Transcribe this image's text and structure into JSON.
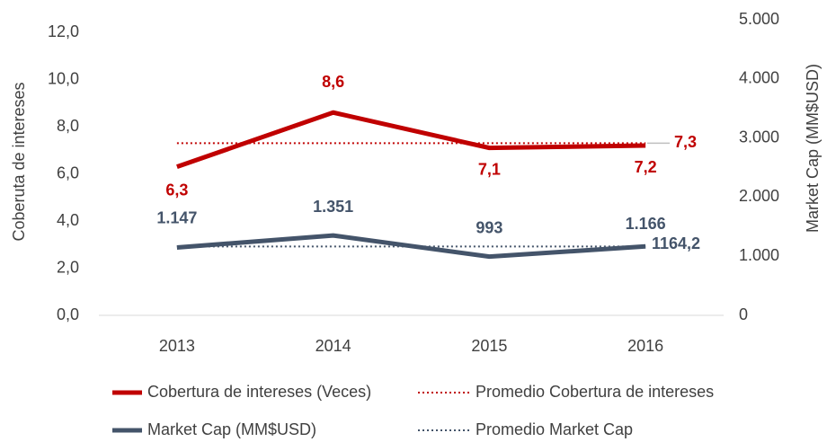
{
  "chart_data": {
    "type": "line",
    "categories": [
      "2013",
      "2014",
      "2015",
      "2016"
    ],
    "ylabel": "Coberuta de intereses",
    "y2label": "Market Cap (MM$USD)",
    "ylim": [
      0,
      12
    ],
    "yticks": [
      {
        "value": 0,
        "label": "0,0"
      },
      {
        "value": 2,
        "label": "2,0"
      },
      {
        "value": 4,
        "label": "4,0"
      },
      {
        "value": 6,
        "label": "6,0"
      },
      {
        "value": 8,
        "label": "8,0"
      },
      {
        "value": 10,
        "label": "10,0"
      },
      {
        "value": 12,
        "label": "12,0"
      }
    ],
    "y2lim": [
      0,
      5000
    ],
    "y2ticks": [
      0,
      {
        "value": 1000,
        "label": "1.000"
      },
      {
        "value": 2000,
        "label": "2.000"
      },
      {
        "value": 3000,
        "label": "3.000"
      },
      {
        "value": 4000,
        "label": "4.000"
      },
      {
        "value": 5000,
        "label": "5.000"
      }
    ],
    "series": [
      {
        "name": "Cobertura de intereses (Veces)",
        "color": "#c00000",
        "line_style": "solid",
        "values": [
          6.3,
          8.6,
          7.1,
          7.2
        ],
        "value_labels": [
          "6,3",
          "8,6",
          "7,1",
          "7,2"
        ]
      },
      {
        "name": "Promedio Cobertura de intereses",
        "color": "#c00000",
        "line_style": "dotted",
        "values": [
          7.3,
          7.3,
          7.3,
          7.3
        ]
      },
      {
        "name": "Market Cap (MM$USD)",
        "color": "#44546a",
        "line_style": "solid",
        "axis": "y2",
        "values": [
          1147,
          1351,
          993,
          1166
        ],
        "value_labels": [
          "1.147",
          "1.351",
          "993",
          "1.166"
        ]
      },
      {
        "name": "Promedio Market Cap",
        "color": "#44546a",
        "line_style": "dotted",
        "axis": "y2",
        "values": [
          1164.2,
          1164.2,
          1164.2,
          1164.2
        ]
      }
    ],
    "annotations": [
      {
        "text": "7,3",
        "value": 7.3
      },
      {
        "text": "1164,2",
        "value": 1164.2
      }
    ]
  }
}
